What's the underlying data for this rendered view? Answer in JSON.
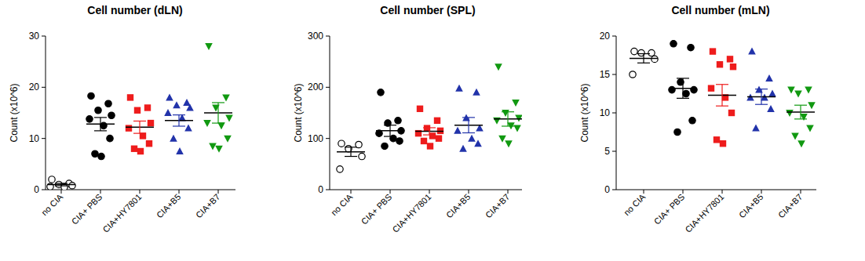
{
  "chart_data": [
    {
      "type": "scatter",
      "title": "Cell number (dLN)",
      "y_label": "Count (x10^6)",
      "categories": [
        "no CIA",
        "CIA+ PBS",
        "CIA+HY7801",
        "CIA+B5",
        "CIA+B7"
      ],
      "ylim": [
        0,
        30
      ],
      "yticks": [
        0,
        10,
        20,
        30
      ],
      "groups": [
        {
          "color": "#000000",
          "marker": "circle-open",
          "values": [
            2,
            1.2,
            1,
            0.8,
            0.6,
            0.5
          ],
          "mean": 1,
          "sem": 0.25
        },
        {
          "color": "#000000",
          "marker": "circle",
          "values": [
            18.3,
            16.8,
            15.5,
            14.5,
            13.8,
            12.5,
            10,
            7,
            6.5
          ],
          "mean": 12.8,
          "sem": 1.3
        },
        {
          "color": "#ee1c1c",
          "marker": "square",
          "values": [
            18,
            16,
            15.5,
            13,
            12,
            10.5,
            9,
            8,
            7.5
          ],
          "mean": 12.2,
          "sem": 1.2
        },
        {
          "color": "#2233aa",
          "marker": "triangle",
          "values": [
            18,
            17,
            16.5,
            16,
            15,
            14,
            12,
            10,
            7.5
          ],
          "mean": 13.5,
          "sem": 1.1
        },
        {
          "color": "#119911",
          "marker": "triangle-down",
          "values": [
            28,
            18,
            16,
            14,
            13,
            12.5,
            10,
            8.5,
            8
          ],
          "mean": 15,
          "sem": 2
        }
      ]
    },
    {
      "type": "scatter",
      "title": "Cell number (SPL)",
      "y_label": "Count (x10^6)",
      "categories": [
        "no CIA",
        "CIA+ PBS",
        "CIA+HY7801",
        "CIA+B5",
        "CIA+B7"
      ],
      "ylim": [
        0,
        300
      ],
      "yticks": [
        0,
        100,
        200,
        300
      ],
      "groups": [
        {
          "color": "#000000",
          "marker": "circle-open",
          "values": [
            90,
            88,
            80,
            65,
            40
          ],
          "mean": 74,
          "sem": 9
        },
        {
          "color": "#000000",
          "marker": "circle",
          "values": [
            190,
            135,
            130,
            115,
            110,
            100,
            95,
            85
          ],
          "mean": 115,
          "sem": 11
        },
        {
          "color": "#ee1c1c",
          "marker": "square",
          "values": [
            158,
            135,
            120,
            115,
            110,
            105,
            100,
            95,
            85
          ],
          "mean": 114,
          "sem": 7
        },
        {
          "color": "#2233aa",
          "marker": "triangle",
          "values": [
            198,
            190,
            140,
            120,
            115,
            100,
            90,
            80
          ],
          "mean": 126,
          "sem": 15
        },
        {
          "color": "#119911",
          "marker": "triangle-down",
          "values": [
            240,
            170,
            150,
            140,
            135,
            125,
            120,
            100,
            90
          ],
          "mean": 138,
          "sem": 14
        }
      ]
    },
    {
      "type": "scatter",
      "title": "Cell number (mLN)",
      "y_label": "Count (x10^6)",
      "categories": [
        "no CIA",
        "CIA+ PBS",
        "CIA+HY7801",
        "CIA+B5",
        "CIA+B7"
      ],
      "ylim": [
        0,
        20
      ],
      "yticks": [
        0,
        5,
        10,
        15,
        20
      ],
      "groups": [
        {
          "color": "#000000",
          "marker": "circle-open",
          "values": [
            18,
            17.8,
            17.8,
            17,
            15
          ],
          "mean": 17.1,
          "sem": 0.6
        },
        {
          "color": "#000000",
          "marker": "circle",
          "values": [
            19,
            18.5,
            14,
            13,
            13,
            12.5,
            9,
            7.5
          ],
          "mean": 13.2,
          "sem": 1.3
        },
        {
          "color": "#ee1c1c",
          "marker": "square",
          "values": [
            18,
            17,
            16.3,
            16,
            13.2,
            12,
            10,
            6.5,
            6
          ],
          "mean": 12.3,
          "sem": 1.4
        },
        {
          "color": "#2233aa",
          "marker": "triangle",
          "values": [
            18,
            14.5,
            13,
            12.5,
            12,
            12,
            10.5,
            8
          ],
          "mean": 12.1,
          "sem": 1
        },
        {
          "color": "#119911",
          "marker": "triangle-down",
          "values": [
            13,
            13,
            12.5,
            11,
            10,
            9.5,
            8,
            7,
            6
          ],
          "mean": 10.1,
          "sem": 0.9
        }
      ]
    }
  ]
}
